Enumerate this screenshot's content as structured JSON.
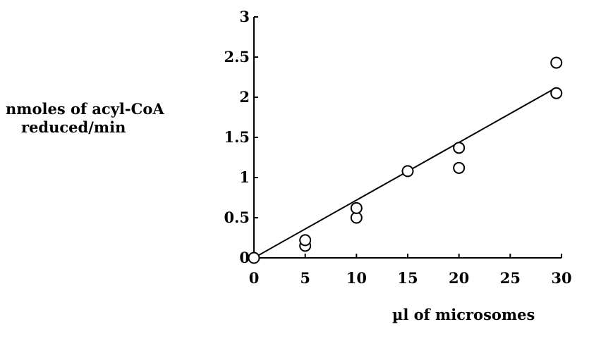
{
  "chart_data": {
    "type": "scatter",
    "title": "",
    "xlabel": "µl of microsomes",
    "ylabel_lines": [
      "nmoles of acyl-CoA",
      "reduced/min"
    ],
    "xlim": [
      0,
      30
    ],
    "ylim": [
      0,
      3
    ],
    "xticks": [
      0,
      5,
      10,
      15,
      20,
      25,
      30
    ],
    "yticks": [
      0,
      0.5,
      1,
      1.5,
      2,
      2.5,
      3
    ],
    "xtick_labels": [
      "0",
      "5",
      "10",
      "15",
      "20",
      "25",
      "30"
    ],
    "ytick_labels": [
      "0",
      "0.5",
      "1",
      "1.5",
      "2",
      "2.5",
      "3"
    ],
    "grid": false,
    "legend": "none",
    "series": [
      {
        "marker": "open-circle",
        "points": [
          {
            "x": 0,
            "y": 0
          },
          {
            "x": 5,
            "y": 0.15
          },
          {
            "x": 5,
            "y": 0.22
          },
          {
            "x": 10,
            "y": 0.5
          },
          {
            "x": 10,
            "y": 0.62
          },
          {
            "x": 15,
            "y": 1.08
          },
          {
            "x": 20,
            "y": 1.12
          },
          {
            "x": 20,
            "y": 1.37
          },
          {
            "x": 29.5,
            "y": 2.05
          },
          {
            "x": 29.5,
            "y": 2.43
          }
        ]
      }
    ],
    "fit_line": {
      "x0": 0,
      "y0": 0,
      "x1": 29.5,
      "y1": 2.12
    }
  }
}
